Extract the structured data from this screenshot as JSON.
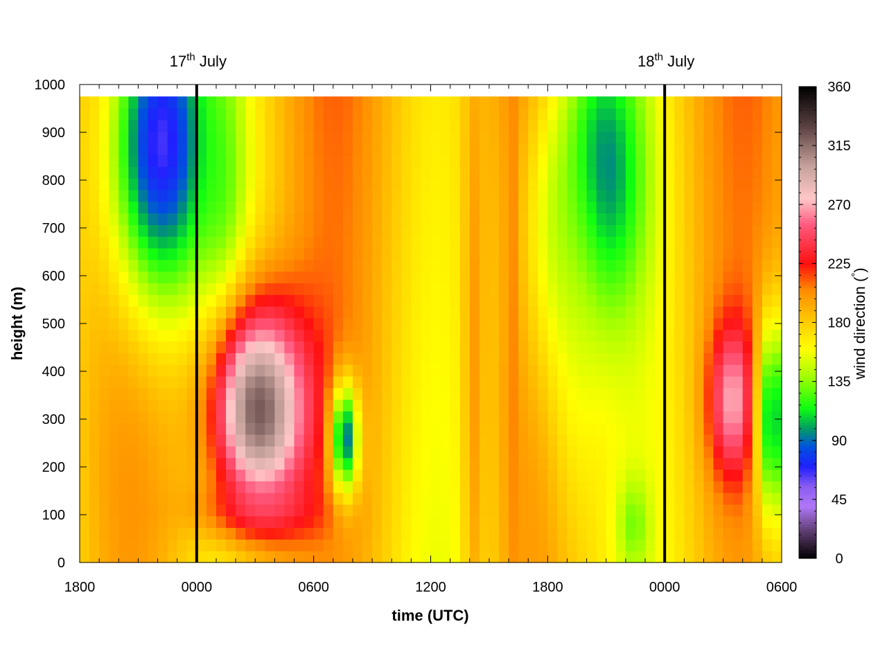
{
  "chart_data": {
    "type": "heatmap",
    "title": "",
    "xlabel": "time (UTC)",
    "ylabel": "height (m)",
    "x_tick_labels": [
      "1800",
      "0000",
      "0600",
      "1200",
      "1800",
      "0000",
      "0600"
    ],
    "x_tick_hours": [
      0,
      6,
      12,
      18,
      24,
      30,
      36
    ],
    "xlim_hours": [
      0,
      36
    ],
    "y_ticks": [
      0,
      100,
      200,
      300,
      400,
      500,
      600,
      700,
      800,
      900,
      1000
    ],
    "ylim": [
      0,
      1000
    ],
    "data_top_height": 975,
    "date_markers": [
      {
        "base": "17",
        "sup": "th",
        "label": " July",
        "hour": 6
      },
      {
        "base": "18",
        "sup": "th",
        "label": " July",
        "hour": 30
      }
    ],
    "colorbar": {
      "label": "wind direction (°)",
      "label_prefix": "wind direction (",
      "label_degree": "°",
      "label_suffix": ")",
      "range": [
        0,
        360
      ],
      "tick_values": [
        0,
        45,
        90,
        135,
        180,
        225,
        270,
        315,
        360
      ],
      "tick_labels": [
        "0",
        "45",
        "90",
        "135",
        "180",
        "225",
        "270",
        "315",
        "360"
      ],
      "stops": [
        [
          0,
          "#000000"
        ],
        [
          20,
          "#5a3a6a"
        ],
        [
          40,
          "#b078f8"
        ],
        [
          55,
          "#8a5cf0"
        ],
        [
          70,
          "#2020ff"
        ],
        [
          85,
          "#0050e0"
        ],
        [
          100,
          "#00a060"
        ],
        [
          115,
          "#10ff10"
        ],
        [
          140,
          "#a8ff00"
        ],
        [
          160,
          "#ffff00"
        ],
        [
          185,
          "#ffc000"
        ],
        [
          205,
          "#ff8a00"
        ],
        [
          225,
          "#ff1010"
        ],
        [
          255,
          "#ff5a80"
        ],
        [
          275,
          "#ffc8c8"
        ],
        [
          300,
          "#c4a09a"
        ],
        [
          330,
          "#5a4040"
        ],
        [
          360,
          "#000000"
        ]
      ]
    },
    "field_description": "wind direction (degrees) as a function of time (hours from 18 UTC 16 July) and height (m)"
  }
}
